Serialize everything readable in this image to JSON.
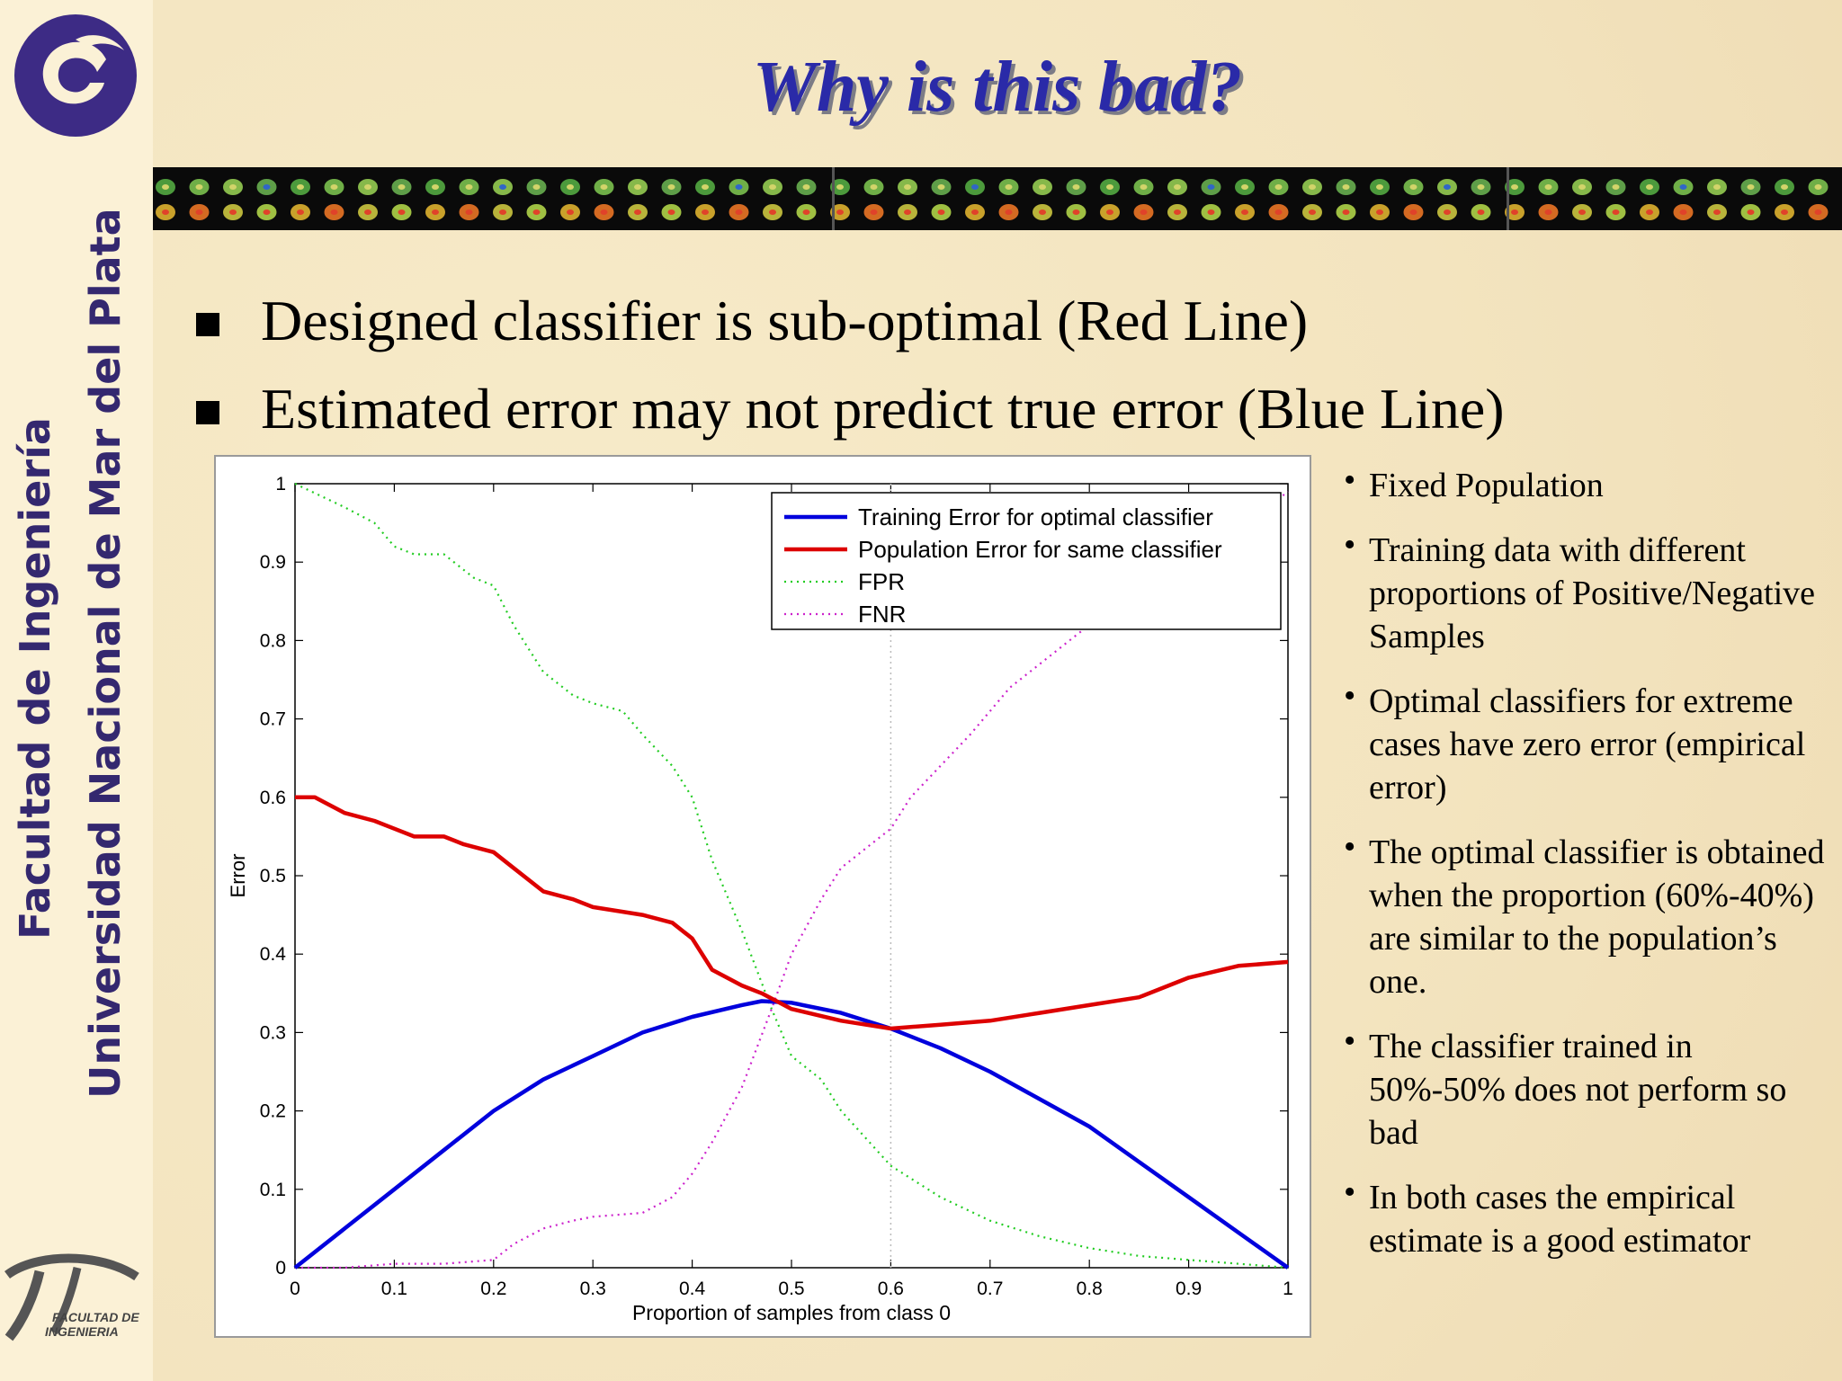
{
  "slide": {
    "title": "Why is this bad?",
    "bullets": [
      "Designed classifier is sub-optimal (Red Line)",
      "Estimated error may not predict true error (Blue Line)"
    ],
    "sidebar": {
      "line1": "Facultad de Ingeniería",
      "line2": "Universidad Nacional de Mar del Plata",
      "logo_text_1": "FACULTAD DE",
      "logo_text_2": "INGENIERIA"
    },
    "notes": [
      "Fixed Population",
      "Training data with different proportions of Positive/Negative Samples",
      "Optimal classifiers for extreme cases have zero error (empirical error)",
      "The optimal classifier is obtained when the proportion (60%-40%) are similar to the population’s one.",
      "The classifier trained in 50%-50% does not perform so bad",
      "In both cases the empirical estimate is a good estimator"
    ],
    "colors": {
      "title": "#2a2aa8",
      "sidebar_text": "#34286f",
      "training": "#0000dd",
      "population": "#dd0000",
      "fpr": "#22cc22",
      "fnr": "#cc22cc"
    }
  },
  "chart_data": {
    "type": "line",
    "xlabel": "Proportion of samples from class 0",
    "ylabel": "Error",
    "xlim": [
      0,
      1
    ],
    "ylim": [
      0,
      1
    ],
    "xticks": [
      "0",
      "0.1",
      "0.2",
      "0.3",
      "0.4",
      "0.5",
      "0.6",
      "0.7",
      "0.8",
      "0.9",
      "1"
    ],
    "yticks": [
      "0",
      "0.1",
      "0.2",
      "0.3",
      "0.4",
      "0.5",
      "0.6",
      "0.7",
      "0.8",
      "0.9",
      "1"
    ],
    "legend_position": "top-right",
    "vertical_reference_x": 0.6,
    "series": [
      {
        "name": "Training Error for optimal classifier",
        "style": "solid",
        "color": "#0000dd",
        "x": [
          0,
          0.05,
          0.1,
          0.15,
          0.2,
          0.25,
          0.3,
          0.35,
          0.4,
          0.45,
          0.47,
          0.5,
          0.55,
          0.6,
          0.65,
          0.7,
          0.75,
          0.8,
          0.85,
          0.9,
          0.95,
          1
        ],
        "y": [
          0,
          0.05,
          0.1,
          0.15,
          0.2,
          0.24,
          0.27,
          0.3,
          0.32,
          0.335,
          0.34,
          0.338,
          0.325,
          0.305,
          0.28,
          0.25,
          0.215,
          0.18,
          0.135,
          0.09,
          0.045,
          0
        ]
      },
      {
        "name": "Population Error for same classifier",
        "style": "solid",
        "color": "#dd0000",
        "x": [
          0,
          0.02,
          0.05,
          0.08,
          0.1,
          0.12,
          0.15,
          0.17,
          0.2,
          0.22,
          0.25,
          0.28,
          0.3,
          0.35,
          0.38,
          0.4,
          0.42,
          0.45,
          0.47,
          0.5,
          0.55,
          0.6,
          0.65,
          0.7,
          0.75,
          0.8,
          0.85,
          0.9,
          0.95,
          1
        ],
        "y": [
          0.6,
          0.6,
          0.58,
          0.57,
          0.56,
          0.55,
          0.55,
          0.54,
          0.53,
          0.51,
          0.48,
          0.47,
          0.46,
          0.45,
          0.44,
          0.42,
          0.38,
          0.36,
          0.35,
          0.33,
          0.315,
          0.305,
          0.31,
          0.315,
          0.325,
          0.335,
          0.345,
          0.37,
          0.385,
          0.39
        ]
      },
      {
        "name": "FPR",
        "style": "dotted",
        "color": "#22cc22",
        "x": [
          0,
          0.05,
          0.08,
          0.1,
          0.12,
          0.15,
          0.18,
          0.2,
          0.22,
          0.25,
          0.28,
          0.3,
          0.33,
          0.35,
          0.38,
          0.4,
          0.42,
          0.45,
          0.48,
          0.5,
          0.53,
          0.55,
          0.6,
          0.65,
          0.7,
          0.75,
          0.8,
          0.85,
          0.9,
          0.95,
          1
        ],
        "y": [
          1,
          0.97,
          0.95,
          0.92,
          0.91,
          0.91,
          0.88,
          0.87,
          0.82,
          0.76,
          0.73,
          0.72,
          0.71,
          0.68,
          0.64,
          0.6,
          0.52,
          0.43,
          0.33,
          0.27,
          0.24,
          0.2,
          0.13,
          0.09,
          0.06,
          0.04,
          0.025,
          0.015,
          0.01,
          0.005,
          0
        ]
      },
      {
        "name": "FNR",
        "style": "dotted",
        "color": "#cc22cc",
        "x": [
          0,
          0.05,
          0.1,
          0.15,
          0.2,
          0.22,
          0.25,
          0.28,
          0.3,
          0.35,
          0.38,
          0.4,
          0.42,
          0.45,
          0.48,
          0.5,
          0.53,
          0.55,
          0.58,
          0.6,
          0.62,
          0.65,
          0.68,
          0.7,
          0.72,
          0.75,
          0.78,
          0.8,
          0.85,
          0.9,
          0.95,
          1
        ],
        "y": [
          0,
          0,
          0.005,
          0.005,
          0.01,
          0.03,
          0.05,
          0.06,
          0.065,
          0.07,
          0.09,
          0.12,
          0.16,
          0.23,
          0.33,
          0.4,
          0.47,
          0.51,
          0.54,
          0.56,
          0.6,
          0.64,
          0.68,
          0.71,
          0.74,
          0.77,
          0.8,
          0.82,
          0.86,
          0.9,
          0.94,
          0.99
        ]
      }
    ]
  }
}
